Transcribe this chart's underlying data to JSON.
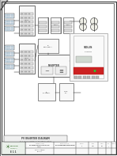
{
  "bg_color": "#ffffff",
  "page_bg": "#cccccc",
  "border_color": "#333333",
  "dark_gray": "#444444",
  "mid_gray": "#888888",
  "light_gray": "#dddddd",
  "very_light_gray": "#f5f5f5",
  "company_green": "#4a7c3f",
  "red_stripe": "#cc2222",
  "inverter_body": "#f0f0f0",
  "inverter_white": "#fafafa",
  "diagram_bg": "#ffffff",
  "panel_blue": "#b8c8d8",
  "panel_dark": "#7090a8",
  "box_fill": "#f8f8f8",
  "line_color": "#222222",
  "fold_size": 14
}
